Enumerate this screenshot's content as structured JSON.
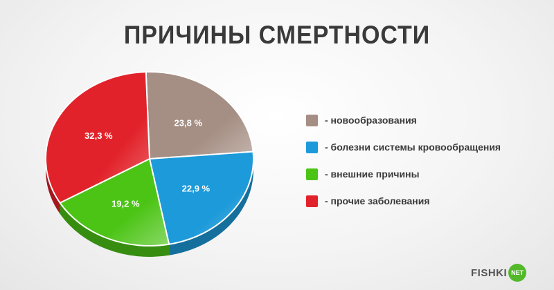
{
  "chart_data": {
    "type": "pie",
    "title": "ПРИЧИНЫ СМЕРТНОСТИ",
    "slices": [
      {
        "label": "- новообразования",
        "value": 23.8,
        "value_label": "23,8 %",
        "color": "#a58e83"
      },
      {
        "label": "- болезни системы кровообращения",
        "value": 22.9,
        "value_label": "22,9 %",
        "color": "#1d9ad9"
      },
      {
        "label": "- внешние причины",
        "value": 19.2,
        "value_label": "19,2 %",
        "color": "#4cc416"
      },
      {
        "label": "- прочие заболевания",
        "value": 32.3,
        "value_label": "32,3 %",
        "color": "#e2222a"
      }
    ],
    "legend_position": "right"
  },
  "logo": {
    "text": "FISHKI",
    "badge": "NET"
  }
}
